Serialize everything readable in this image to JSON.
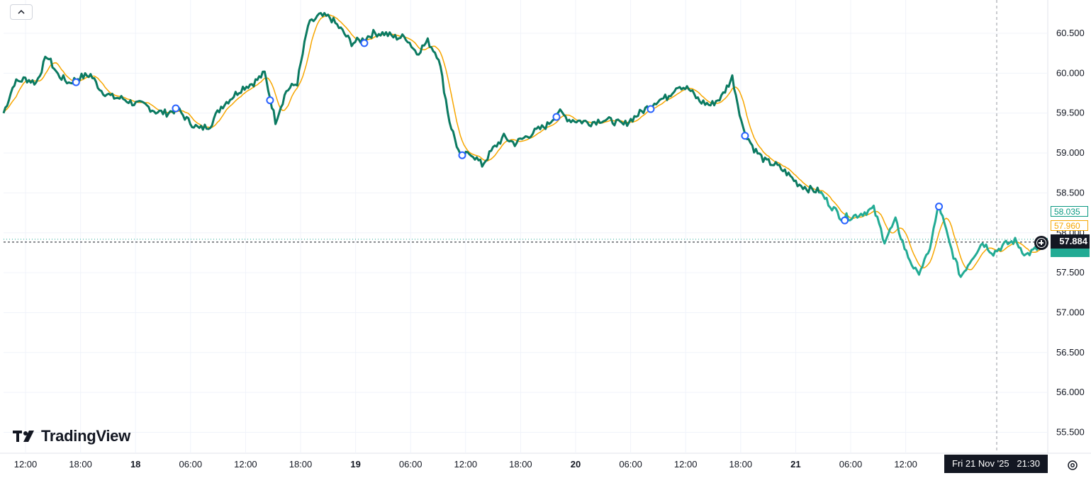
{
  "chart_data": {
    "type": "line",
    "title": "",
    "xlabel": "",
    "ylabel": "",
    "ylim": [
      55.35,
      60.9
    ],
    "y_ticks": [
      "60.500",
      "60.000",
      "59.500",
      "59.000",
      "58.500",
      "58.000",
      "57.500",
      "57.000",
      "56.500",
      "56.000",
      "55.500"
    ],
    "x_ticks": [
      {
        "label": "12:00",
        "bold": false
      },
      {
        "label": "18:00",
        "bold": false
      },
      {
        "label": "18",
        "bold": true
      },
      {
        "label": "06:00",
        "bold": false
      },
      {
        "label": "12:00",
        "bold": false
      },
      {
        "label": "18:00",
        "bold": false
      },
      {
        "label": "19",
        "bold": true
      },
      {
        "label": "06:00",
        "bold": false
      },
      {
        "label": "12:00",
        "bold": false
      },
      {
        "label": "18:00",
        "bold": false
      },
      {
        "label": "20",
        "bold": true
      },
      {
        "label": "06:00",
        "bold": false
      },
      {
        "label": "12:00",
        "bold": false
      },
      {
        "label": "18:00",
        "bold": false
      },
      {
        "label": "21",
        "bold": true
      },
      {
        "label": "06:00",
        "bold": false
      },
      {
        "label": "12:00",
        "bold": false
      }
    ],
    "grid": true,
    "x_hours": [
      0,
      1,
      2,
      3,
      4,
      5,
      6,
      7,
      8,
      9,
      10,
      11,
      12,
      13,
      14,
      15,
      16,
      17,
      18,
      19,
      20,
      21,
      22,
      23,
      24,
      25,
      26,
      27,
      28,
      29,
      30,
      31,
      32,
      33,
      34,
      35,
      36,
      37,
      38,
      39,
      40,
      41,
      42,
      43,
      44,
      45,
      46,
      47,
      48,
      49,
      50,
      51,
      52,
      53,
      54,
      55,
      56,
      57,
      58,
      59,
      60,
      61,
      62,
      63,
      64,
      65,
      66,
      67,
      68,
      69,
      70,
      71,
      72,
      73,
      74,
      75,
      76,
      77,
      78,
      79,
      80,
      81,
      82,
      83,
      84,
      85,
      86,
      87,
      88,
      89,
      90,
      91,
      92,
      93,
      94,
      95,
      96,
      97,
      98,
      99,
      100,
      101,
      102,
      103,
      104,
      105,
      106,
      107,
      108,
      109,
      110,
      111,
      112,
      113,
      114
    ],
    "x_start_note_hours_offset": -2.3,
    "series": [
      {
        "values": [
          59.5,
          59.88,
          59.93,
          59.88,
          60.22,
          59.98,
          59.88,
          59.95,
          59.98,
          59.78,
          59.7,
          59.68,
          59.62,
          59.6,
          59.52,
          59.5,
          59.55,
          59.4,
          59.3,
          59.35,
          59.58,
          59.7,
          59.82,
          59.88,
          60.0,
          59.4,
          59.78,
          59.88,
          60.6,
          60.72,
          60.7,
          60.55,
          60.38,
          60.42,
          60.5,
          60.5,
          60.45,
          60.45,
          60.25,
          60.4,
          60.2,
          59.4,
          58.95,
          59.0,
          58.85,
          59.05,
          59.2,
          59.12,
          59.2,
          59.28,
          59.35,
          59.52,
          59.42,
          59.4,
          59.38,
          59.42,
          59.4,
          59.35,
          59.45,
          59.55,
          59.65,
          59.7,
          59.85,
          59.8,
          59.65,
          59.6,
          59.7,
          59.95,
          59.3,
          59.05,
          58.9,
          58.85,
          58.75,
          58.62,
          58.55,
          58.52,
          58.35,
          58.2,
          58.2,
          58.25,
          58.3,
          57.9,
          58.15,
          57.75,
          57.48,
          57.72,
          58.35,
          57.85,
          57.45,
          57.68,
          57.88,
          57.75,
          57.85,
          57.9,
          57.72,
          57.8,
          57.92
        ],
        "color": "#0b7a61"
      }
    ],
    "last_price": "57.884",
    "badge_teal_value": "58.035",
    "badge_orange_value": "57.960",
    "crosshair_time": "Fri 21 Nov '25",
    "crosshair_hour": "21:30"
  },
  "ui": {
    "logo_text": "TradingView",
    "colors": {
      "line_dark": "#0b7a61",
      "line_light": "#22ab94",
      "ma_line": "#f7a600",
      "marker": "#2962ff"
    }
  }
}
